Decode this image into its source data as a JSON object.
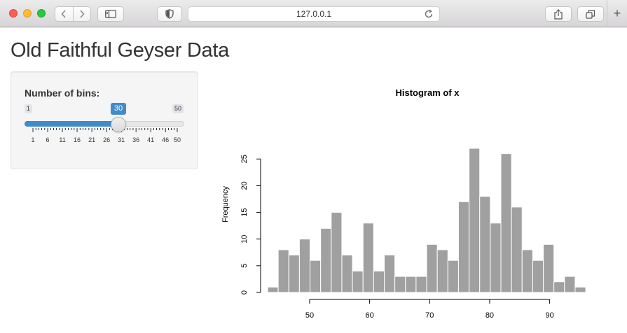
{
  "browser": {
    "url": "127.0.0.1",
    "new_tab_symbol": "+"
  },
  "page": {
    "title": "Old Faithful Geyser Data"
  },
  "sidebar": {
    "bins_label": "Number of bins:",
    "slider": {
      "min": 1,
      "max": 50,
      "value": 30,
      "min_label": "1",
      "max_label": "50",
      "value_label": "30",
      "major_ticks": [
        "1",
        "6",
        "11",
        "16",
        "21",
        "26",
        "31",
        "36",
        "41",
        "46",
        "50"
      ],
      "accent_color": "#428bca"
    }
  },
  "chart_data": {
    "type": "bar",
    "title": "Histogram of x",
    "xlabel": "",
    "ylabel": "Frequency",
    "bin_start": 43,
    "bin_width": 1.767,
    "values": [
      1,
      8,
      7,
      10,
      6,
      12,
      15,
      7,
      4,
      13,
      4,
      7,
      3,
      3,
      3,
      9,
      8,
      6,
      17,
      27,
      18,
      13,
      26,
      16,
      8,
      6,
      9,
      2,
      3,
      1
    ],
    "xticks": [
      50,
      60,
      70,
      80,
      90
    ],
    "yticks": [
      0,
      5,
      10,
      15,
      20,
      25
    ],
    "xlim": [
      43,
      96
    ],
    "ylim": [
      0,
      27
    ],
    "bar_color": "#a0a0a0",
    "bar_edge": "#ffffff",
    "grid": false
  }
}
